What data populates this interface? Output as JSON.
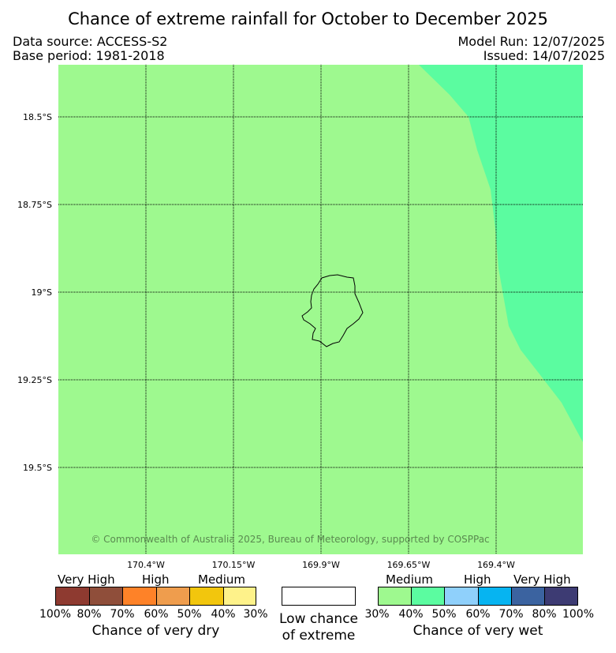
{
  "title": "Chance of extreme rainfall for October to December 2025",
  "meta": {
    "source": "Data source: ACCESS-S2",
    "base_period": "Base period: 1981-2018",
    "model_run": "Model Run: 12/07/2025",
    "issued": "Issued: 14/07/2025"
  },
  "map": {
    "latitudes": [
      "18.5°S",
      "18.75°S",
      "19°S",
      "19.25°S",
      "19.5°S"
    ],
    "longitudes": [
      "170.4°W",
      "170.15°W",
      "169.9°W",
      "169.65°W",
      "169.4°W"
    ],
    "copyright": "© Commonwealth of Australia 2025, Bureau of Meteorology, supported by COSPPac",
    "colors": {
      "medium_wet": "#9ef98f",
      "high_wet_zone": "#5bfca0",
      "grid": "#000000",
      "coastline": "#000000"
    }
  },
  "legend": {
    "dry": {
      "categories": [
        "Very High",
        "High",
        "Medium"
      ],
      "colors": [
        "#8e3a30",
        "#8f4e3a",
        "#fe8228",
        "#ef9d4d",
        "#f2c60d",
        "#fef28a"
      ],
      "ticks": [
        "100%",
        "80%",
        "70%",
        "60%",
        "50%",
        "40%",
        "30%"
      ],
      "caption": "Chance of very dry"
    },
    "low": {
      "caption_line1": "Low chance",
      "caption_line2": "of extreme",
      "color": "#ffffff"
    },
    "wet": {
      "categories": [
        "Medium",
        "High",
        "Very High"
      ],
      "colors": [
        "#9ef98f",
        "#5bfca0",
        "#8fd0fb",
        "#06b4f1",
        "#3b63a0",
        "#3d3b73"
      ],
      "ticks": [
        "30%",
        "40%",
        "50%",
        "60%",
        "70%",
        "80%",
        "100%"
      ],
      "caption": "Chance of very wet"
    }
  }
}
